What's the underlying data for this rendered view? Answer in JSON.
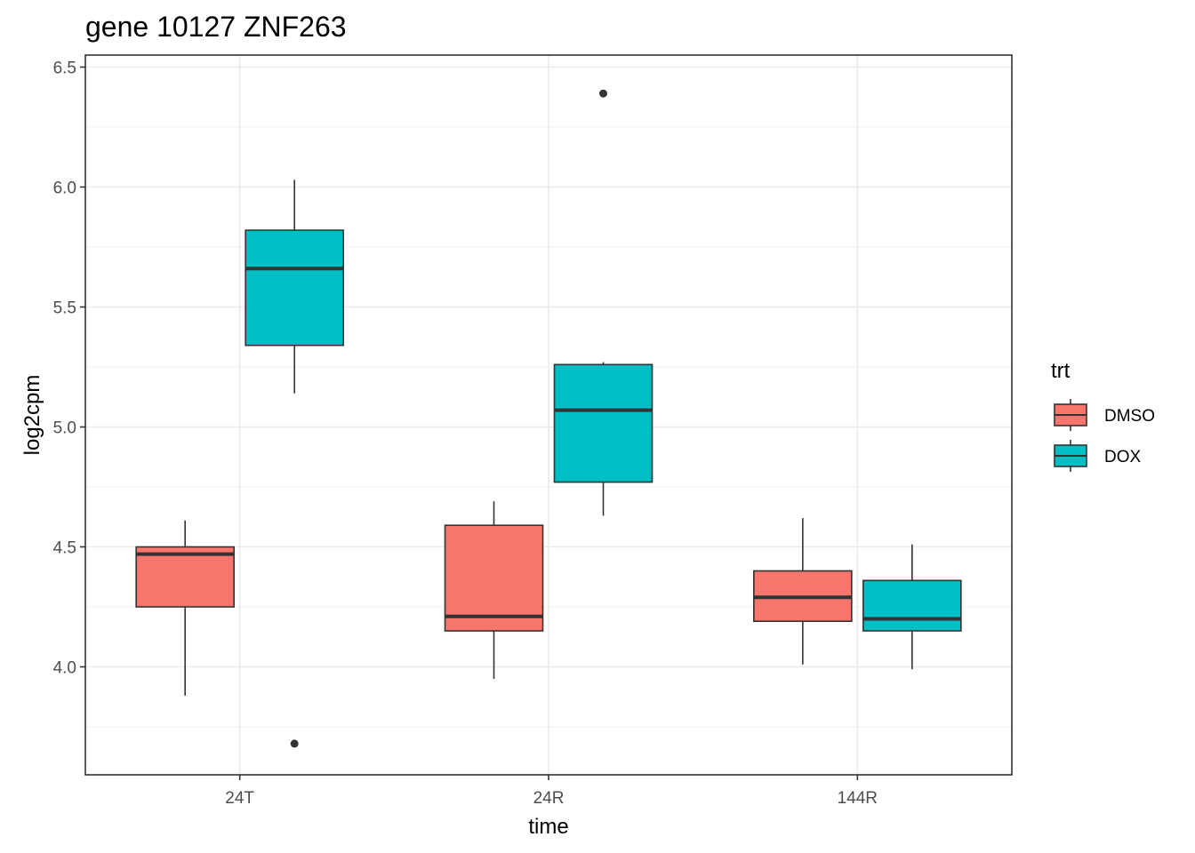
{
  "chart_data": {
    "type": "boxplot",
    "title": "gene 10127 ZNF263",
    "xlabel": "time",
    "ylabel": "log2cpm",
    "categories": [
      "24T",
      "24R",
      "144R"
    ],
    "ylim": [
      3.55,
      6.55
    ],
    "y_ticks": [
      "4.0",
      "4.5",
      "5.0",
      "5.5",
      "6.0",
      "6.5"
    ],
    "grid": true,
    "legend": {
      "title": "trt",
      "position": "right",
      "entries": [
        {
          "label": "DMSO",
          "color": "#F8766D"
        },
        {
          "label": "DOX",
          "color": "#00BFC4"
        }
      ]
    },
    "series": [
      {
        "name": "DMSO",
        "color": "#F8766D",
        "boxes": [
          {
            "category": "24T",
            "whisker_low": 3.88,
            "q1": 4.25,
            "median": 4.47,
            "q3": 4.5,
            "whisker_high": 4.61,
            "outliers": []
          },
          {
            "category": "24R",
            "whisker_low": 3.95,
            "q1": 4.15,
            "median": 4.21,
            "q3": 4.59,
            "whisker_high": 4.69,
            "outliers": []
          },
          {
            "category": "144R",
            "whisker_low": 4.01,
            "q1": 4.19,
            "median": 4.29,
            "q3": 4.4,
            "whisker_high": 4.62,
            "outliers": []
          }
        ]
      },
      {
        "name": "DOX",
        "color": "#00BFC4",
        "boxes": [
          {
            "category": "24T",
            "whisker_low": 5.14,
            "q1": 5.34,
            "median": 5.66,
            "q3": 5.82,
            "whisker_high": 6.03,
            "outliers": [
              3.68
            ]
          },
          {
            "category": "24R",
            "whisker_low": 4.63,
            "q1": 4.77,
            "median": 5.07,
            "q3": 5.26,
            "whisker_high": 5.27,
            "outliers": [
              6.39
            ]
          },
          {
            "category": "144R",
            "whisker_low": 3.99,
            "q1": 4.15,
            "median": 4.2,
            "q3": 4.36,
            "whisker_high": 4.51,
            "outliers": []
          }
        ]
      }
    ]
  }
}
